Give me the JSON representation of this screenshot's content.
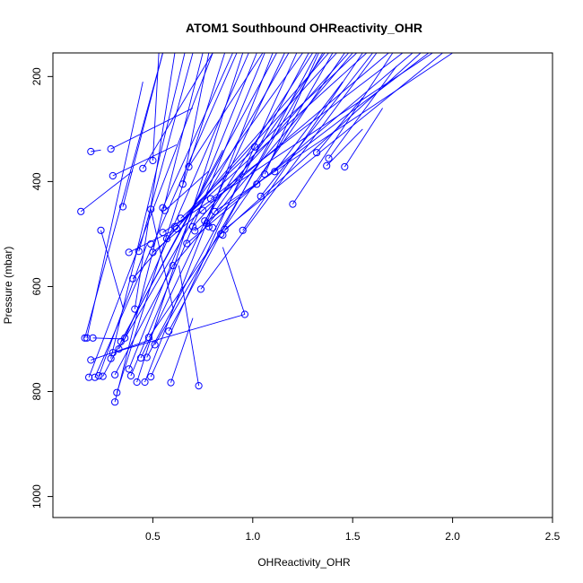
{
  "chart_data": {
    "type": "scatter",
    "title": "ATOM1 Southbound OHReactivity_OHR",
    "xlabel": "OHReactivity_OHR",
    "ylabel": "Pressure (mbar)",
    "xlim": [
      0.0,
      2.5
    ],
    "ylim": [
      1040,
      155
    ],
    "x_ticks": [
      "0.5",
      "1.0",
      "1.5",
      "2.0",
      "2.5"
    ],
    "x_tick_values": [
      0.5,
      1.0,
      1.5,
      2.0,
      2.5
    ],
    "y_ticks": [
      "200",
      "400",
      "600",
      "800",
      "1000"
    ],
    "y_tick_values": [
      200,
      400,
      600,
      800,
      1000
    ],
    "y_reversed": true,
    "grid": false,
    "colors": {
      "series": "#0000ff",
      "axis": "#000000"
    },
    "points": [
      {
        "x": 0.14,
        "y": 457
      },
      {
        "x": 0.16,
        "y": 698
      },
      {
        "x": 0.17,
        "y": 698
      },
      {
        "x": 0.18,
        "y": 773
      },
      {
        "x": 0.19,
        "y": 343
      },
      {
        "x": 0.19,
        "y": 740
      },
      {
        "x": 0.2,
        "y": 698
      },
      {
        "x": 0.21,
        "y": 773
      },
      {
        "x": 0.23,
        "y": 770
      },
      {
        "x": 0.24,
        "y": 493
      },
      {
        "x": 0.25,
        "y": 771
      },
      {
        "x": 0.29,
        "y": 338
      },
      {
        "x": 0.29,
        "y": 737
      },
      {
        "x": 0.3,
        "y": 389
      },
      {
        "x": 0.3,
        "y": 726
      },
      {
        "x": 0.31,
        "y": 820
      },
      {
        "x": 0.31,
        "y": 768
      },
      {
        "x": 0.32,
        "y": 802
      },
      {
        "x": 0.33,
        "y": 719
      },
      {
        "x": 0.34,
        "y": 705
      },
      {
        "x": 0.35,
        "y": 448
      },
      {
        "x": 0.36,
        "y": 698
      },
      {
        "x": 0.38,
        "y": 535
      },
      {
        "x": 0.38,
        "y": 757
      },
      {
        "x": 0.39,
        "y": 770
      },
      {
        "x": 0.4,
        "y": 585
      },
      {
        "x": 0.41,
        "y": 643
      },
      {
        "x": 0.42,
        "y": 782
      },
      {
        "x": 0.43,
        "y": 533
      },
      {
        "x": 0.44,
        "y": 736
      },
      {
        "x": 0.45,
        "y": 375
      },
      {
        "x": 0.46,
        "y": 782
      },
      {
        "x": 0.47,
        "y": 735
      },
      {
        "x": 0.48,
        "y": 697
      },
      {
        "x": 0.49,
        "y": 453
      },
      {
        "x": 0.49,
        "y": 519
      },
      {
        "x": 0.49,
        "y": 772
      },
      {
        "x": 0.5,
        "y": 360
      },
      {
        "x": 0.5,
        "y": 535
      },
      {
        "x": 0.51,
        "y": 711
      },
      {
        "x": 0.55,
        "y": 450
      },
      {
        "x": 0.55,
        "y": 497
      },
      {
        "x": 0.56,
        "y": 455
      },
      {
        "x": 0.57,
        "y": 509
      },
      {
        "x": 0.58,
        "y": 685
      },
      {
        "x": 0.59,
        "y": 783
      },
      {
        "x": 0.6,
        "y": 560
      },
      {
        "x": 0.61,
        "y": 486
      },
      {
        "x": 0.62,
        "y": 490
      },
      {
        "x": 0.64,
        "y": 470
      },
      {
        "x": 0.65,
        "y": 405
      },
      {
        "x": 0.67,
        "y": 518
      },
      {
        "x": 0.68,
        "y": 372
      },
      {
        "x": 0.7,
        "y": 486
      },
      {
        "x": 0.71,
        "y": 494
      },
      {
        "x": 0.73,
        "y": 789
      },
      {
        "x": 0.74,
        "y": 605
      },
      {
        "x": 0.75,
        "y": 455
      },
      {
        "x": 0.76,
        "y": 475
      },
      {
        "x": 0.77,
        "y": 480
      },
      {
        "x": 0.78,
        "y": 486
      },
      {
        "x": 0.79,
        "y": 433
      },
      {
        "x": 0.8,
        "y": 488
      },
      {
        "x": 0.81,
        "y": 457
      },
      {
        "x": 0.84,
        "y": 500
      },
      {
        "x": 0.85,
        "y": 502
      },
      {
        "x": 0.86,
        "y": 491
      },
      {
        "x": 0.95,
        "y": 493
      },
      {
        "x": 0.96,
        "y": 653
      },
      {
        "x": 1.01,
        "y": 334
      },
      {
        "x": 1.02,
        "y": 405
      },
      {
        "x": 1.04,
        "y": 428
      },
      {
        "x": 1.06,
        "y": 386
      },
      {
        "x": 1.11,
        "y": 381
      },
      {
        "x": 1.2,
        "y": 443
      },
      {
        "x": 1.32,
        "y": 345
      },
      {
        "x": 1.37,
        "y": 370
      },
      {
        "x": 1.38,
        "y": 356
      },
      {
        "x": 1.46,
        "y": 372
      }
    ],
    "segments": [
      [
        0.14,
        457,
        0.4,
        380
      ],
      [
        0.19,
        343,
        0.24,
        340
      ],
      [
        0.16,
        698,
        0.55,
        155
      ],
      [
        0.17,
        698,
        0.45,
        210
      ],
      [
        0.18,
        773,
        0.8,
        155
      ],
      [
        0.2,
        698,
        0.36,
        700
      ],
      [
        0.24,
        493,
        0.35,
        640
      ],
      [
        0.29,
        737,
        0.66,
        155
      ],
      [
        0.3,
        389,
        0.62,
        330
      ],
      [
        0.31,
        820,
        0.75,
        155
      ],
      [
        0.32,
        802,
        0.86,
        155
      ],
      [
        0.33,
        719,
        1.18,
        155
      ],
      [
        0.35,
        448,
        0.55,
        155
      ],
      [
        0.38,
        757,
        1.02,
        155
      ],
      [
        0.39,
        770,
        1.06,
        155
      ],
      [
        0.41,
        643,
        0.61,
        155
      ],
      [
        0.42,
        782,
        0.95,
        155
      ],
      [
        0.43,
        533,
        0.7,
        155
      ],
      [
        0.45,
        375,
        0.8,
        155
      ],
      [
        0.46,
        782,
        1.1,
        155
      ],
      [
        0.47,
        735,
        1.28,
        155
      ],
      [
        0.49,
        772,
        1.22,
        155
      ],
      [
        0.49,
        453,
        0.6,
        640
      ],
      [
        0.5,
        360,
        0.53,
        155
      ],
      [
        0.51,
        711,
        1.35,
        155
      ],
      [
        0.55,
        450,
        0.9,
        155
      ],
      [
        0.57,
        509,
        1.42,
        155
      ],
      [
        0.58,
        685,
        1.32,
        155
      ],
      [
        0.59,
        783,
        0.7,
        660
      ],
      [
        0.61,
        486,
        1.57,
        155
      ],
      [
        0.64,
        470,
        1.52,
        155
      ],
      [
        0.65,
        405,
        0.78,
        155
      ],
      [
        0.67,
        518,
        1.8,
        155
      ],
      [
        0.68,
        372,
        1.05,
        155
      ],
      [
        0.7,
        486,
        1.48,
        155
      ],
      [
        0.73,
        789,
        0.63,
        560
      ],
      [
        0.74,
        605,
        1.62,
        155
      ],
      [
        0.76,
        475,
        1.3,
        155
      ],
      [
        0.79,
        433,
        1.75,
        155
      ],
      [
        0.81,
        457,
        2.0,
        155
      ],
      [
        0.84,
        500,
        1.84,
        155
      ],
      [
        0.86,
        491,
        1.95,
        155
      ],
      [
        0.95,
        493,
        1.55,
        155
      ],
      [
        0.96,
        653,
        0.85,
        525
      ],
      [
        1.02,
        405,
        1.4,
        155
      ],
      [
        1.04,
        428,
        1.6,
        155
      ],
      [
        1.06,
        386,
        1.33,
        155
      ],
      [
        1.11,
        381,
        1.45,
        210
      ],
      [
        1.2,
        443,
        1.7,
        155
      ],
      [
        1.32,
        345,
        1.55,
        240
      ],
      [
        1.37,
        370,
        1.55,
        300
      ],
      [
        1.38,
        356,
        1.72,
        180
      ],
      [
        1.46,
        372,
        1.65,
        260
      ],
      [
        0.21,
        773,
        0.92,
        155
      ],
      [
        0.29,
        338,
        0.7,
        260
      ],
      [
        0.34,
        705,
        1.12,
        155
      ],
      [
        0.36,
        698,
        0.98,
        155
      ],
      [
        0.4,
        585,
        1.38,
        155
      ],
      [
        0.44,
        736,
        1.16,
        155
      ],
      [
        0.48,
        697,
        1.46,
        155
      ],
      [
        0.5,
        535,
        1.68,
        155
      ],
      [
        0.55,
        497,
        1.9,
        155
      ],
      [
        0.6,
        560,
        1.5,
        155
      ],
      [
        0.62,
        490,
        1.25,
        155
      ],
      [
        0.71,
        494,
        1.88,
        155
      ],
      [
        0.77,
        480,
        1.36,
        155
      ],
      [
        0.23,
        770,
        0.47,
        520
      ],
      [
        0.25,
        771,
        0.85,
        340
      ],
      [
        0.3,
        726,
        0.96,
        653
      ],
      [
        0.31,
        768,
        0.6,
        560
      ],
      [
        0.38,
        535,
        0.62,
        490
      ],
      [
        0.19,
        740,
        0.5,
        700
      ],
      [
        0.56,
        455,
        0.78,
        380
      ]
    ]
  }
}
